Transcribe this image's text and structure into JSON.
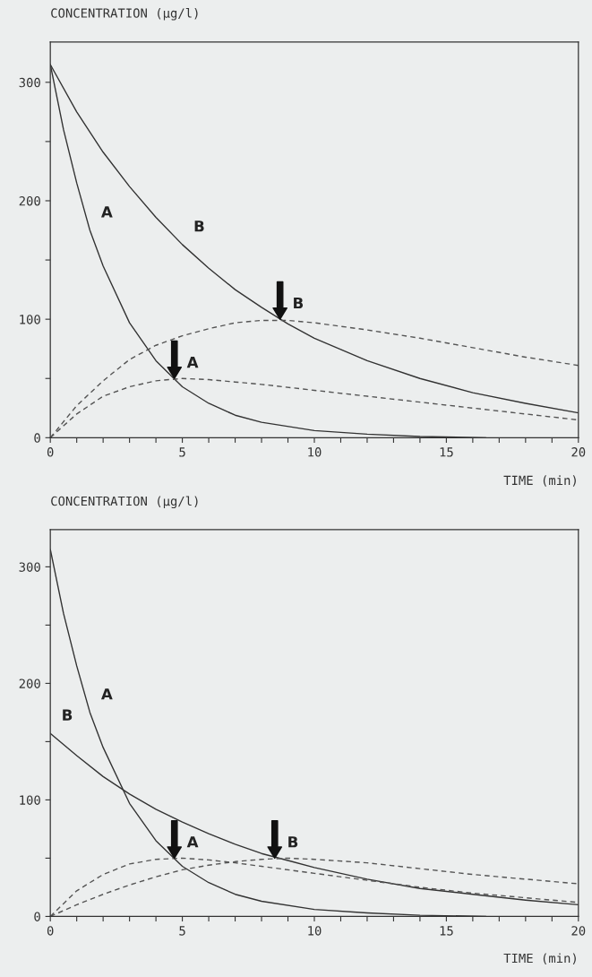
{
  "chart_data": [
    {
      "type": "line",
      "ylabel": "CONCENTRATION (µg/l)",
      "xlabel": "TIME (min)",
      "xlim": [
        0,
        20
      ],
      "ylim": [
        0,
        334
      ],
      "xticks": [
        0,
        {
          "value": 1,
          "label": null
        },
        {
          "value": 2,
          "label": null
        },
        {
          "value": 3,
          "label": null
        },
        {
          "value": 4,
          "label": null
        },
        5,
        {
          "value": 6,
          "label": null
        },
        {
          "value": 7,
          "label": null
        },
        {
          "value": 8,
          "label": null
        },
        {
          "value": 9,
          "label": null
        },
        10,
        {
          "value": 11,
          "label": null
        },
        {
          "value": 12,
          "label": null
        },
        {
          "value": 13,
          "label": null
        },
        {
          "value": 14,
          "label": null
        },
        15,
        {
          "value": 16,
          "label": null
        },
        {
          "value": 17,
          "label": null
        },
        {
          "value": 18,
          "label": null
        },
        {
          "value": 19,
          "label": null
        },
        20
      ],
      "yticks": [
        0,
        {
          "value": 50,
          "label": null
        },
        100,
        {
          "value": 150,
          "label": null
        },
        200,
        {
          "value": 250,
          "label": null
        },
        300
      ],
      "grid": false,
      "legend": false,
      "series": [
        {
          "name": "A",
          "color": "#333333",
          "line_style": "solid",
          "x": [
            0,
            0.5,
            1,
            1.5,
            2,
            3,
            4,
            5,
            6,
            7,
            8,
            10,
            12,
            14,
            16.5
          ],
          "values": [
            315,
            260,
            215,
            175,
            145,
            97,
            65,
            43,
            29,
            19,
            13,
            6,
            3,
            1,
            0
          ]
        },
        {
          "name": "B",
          "color": "#333333",
          "line_style": "solid",
          "x": [
            0,
            1,
            2,
            3,
            4,
            5,
            6,
            7,
            8,
            9,
            10,
            12,
            14,
            16,
            18,
            20
          ],
          "values": [
            315,
            275,
            241,
            212,
            186,
            163,
            143,
            125,
            110,
            96,
            84,
            65,
            50,
            38,
            29,
            21
          ]
        },
        {
          "color": "#555555",
          "line_style": "dashed",
          "x": [
            0,
            1,
            2,
            3,
            4,
            5,
            6,
            7,
            8,
            9,
            10,
            12,
            14,
            16,
            18,
            20
          ],
          "values": [
            0,
            27,
            48,
            66,
            78,
            86,
            92,
            97,
            99,
            99,
            97,
            91,
            84,
            76,
            68,
            61
          ]
        },
        {
          "color": "#555555",
          "line_style": "dashed",
          "x": [
            0,
            1,
            2,
            3,
            4,
            5,
            6,
            7,
            8,
            10,
            12,
            14,
            16,
            18,
            20
          ],
          "values": [
            0,
            20,
            35,
            43,
            48,
            50,
            49,
            47,
            45,
            40,
            35,
            30,
            25,
            20,
            15
          ]
        }
      ],
      "annotations": [
        {
          "text": "A",
          "x": 4.7,
          "y": 50
        },
        {
          "text": "B",
          "x": 8.7,
          "y": 100
        }
      ]
    },
    {
      "type": "line",
      "ylabel": "CONCENTRATION (µg/l)",
      "xlabel": "TIME (min)",
      "xlim": [
        0,
        20
      ],
      "ylim": [
        0,
        332
      ],
      "xticks": [
        0,
        {
          "value": 1,
          "label": null
        },
        {
          "value": 2,
          "label": null
        },
        {
          "value": 3,
          "label": null
        },
        {
          "value": 4,
          "label": null
        },
        5,
        {
          "value": 6,
          "label": null
        },
        {
          "value": 7,
          "label": null
        },
        {
          "value": 8,
          "label": null
        },
        {
          "value": 9,
          "label": null
        },
        10,
        {
          "value": 11,
          "label": null
        },
        {
          "value": 12,
          "label": null
        },
        {
          "value": 13,
          "label": null
        },
        {
          "value": 14,
          "label": null
        },
        15,
        {
          "value": 16,
          "label": null
        },
        {
          "value": 17,
          "label": null
        },
        {
          "value": 18,
          "label": null
        },
        {
          "value": 19,
          "label": null
        },
        20
      ],
      "yticks": [
        0,
        {
          "value": 50,
          "label": null
        },
        100,
        {
          "value": 150,
          "label": null
        },
        200,
        {
          "value": 250,
          "label": null
        },
        300
      ],
      "grid": false,
      "legend": false,
      "series": [
        {
          "name": "A",
          "color": "#333333",
          "line_style": "solid",
          "x": [
            0,
            0.5,
            1,
            1.5,
            2,
            3,
            4,
            5,
            6,
            7,
            8,
            10,
            12,
            14,
            16.5
          ],
          "values": [
            315,
            260,
            215,
            175,
            145,
            97,
            65,
            43,
            29,
            19,
            13,
            6,
            3,
            1,
            0
          ]
        },
        {
          "name": "B",
          "color": "#333333",
          "line_style": "solid",
          "x": [
            0,
            1,
            2,
            3,
            4,
            5,
            6,
            7,
            8,
            9,
            10,
            12,
            14,
            16,
            18,
            20
          ],
          "values": [
            157,
            138,
            120,
            105,
            92,
            81,
            71,
            62,
            54,
            48,
            42,
            32,
            24,
            19,
            14,
            10
          ]
        },
        {
          "color": "#555555",
          "line_style": "dashed",
          "x": [
            0,
            1,
            2,
            3,
            4,
            5,
            6,
            7,
            8,
            10,
            12,
            14,
            16,
            18,
            20
          ],
          "values": [
            0,
            22,
            36,
            45,
            49,
            50,
            48.5,
            46,
            43,
            37,
            31,
            25,
            20,
            16,
            12
          ]
        },
        {
          "color": "#555555",
          "line_style": "dashed",
          "x": [
            0,
            1,
            2,
            3,
            4,
            5,
            6,
            7,
            8,
            9,
            10,
            12,
            14,
            16,
            18,
            20
          ],
          "values": [
            0,
            10,
            19,
            27,
            34,
            40,
            44,
            47,
            49,
            50,
            49,
            46,
            41,
            36,
            32,
            28
          ]
        }
      ],
      "annotations": [
        {
          "text": "A",
          "x": 4.7,
          "y": 50
        },
        {
          "text": "B",
          "x": 8.5,
          "y": 50
        }
      ]
    }
  ]
}
